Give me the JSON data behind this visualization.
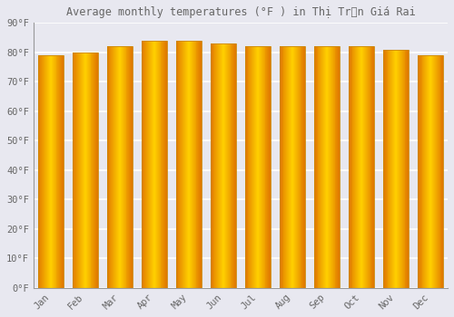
{
  "title": "Average monthly temperatures (°F ) in Thị Trấn Giá Rai",
  "months": [
    "Jan",
    "Feb",
    "Mar",
    "Apr",
    "May",
    "Jun",
    "Jul",
    "Aug",
    "Sep",
    "Oct",
    "Nov",
    "Dec"
  ],
  "values": [
    79,
    80,
    82,
    84,
    84,
    83,
    82,
    82,
    82,
    82,
    81,
    79
  ],
  "bar_edge_color": "#E07800",
  "bar_center_color": "#FFD000",
  "bar_border_color": "#B8860B",
  "background_color": "#E8E8F0",
  "plot_bg_color": "#E8E8F0",
  "grid_color": "#FFFFFF",
  "text_color": "#666666",
  "ytick_labels": [
    "0°F",
    "10°F",
    "20°F",
    "30°F",
    "40°F",
    "50°F",
    "60°F",
    "70°F",
    "80°F",
    "90°F"
  ],
  "ytick_values": [
    0,
    10,
    20,
    30,
    40,
    50,
    60,
    70,
    80,
    90
  ],
  "ylim": [
    0,
    90
  ],
  "title_fontsize": 8.5,
  "bar_width": 0.75,
  "num_gradient_steps": 30
}
